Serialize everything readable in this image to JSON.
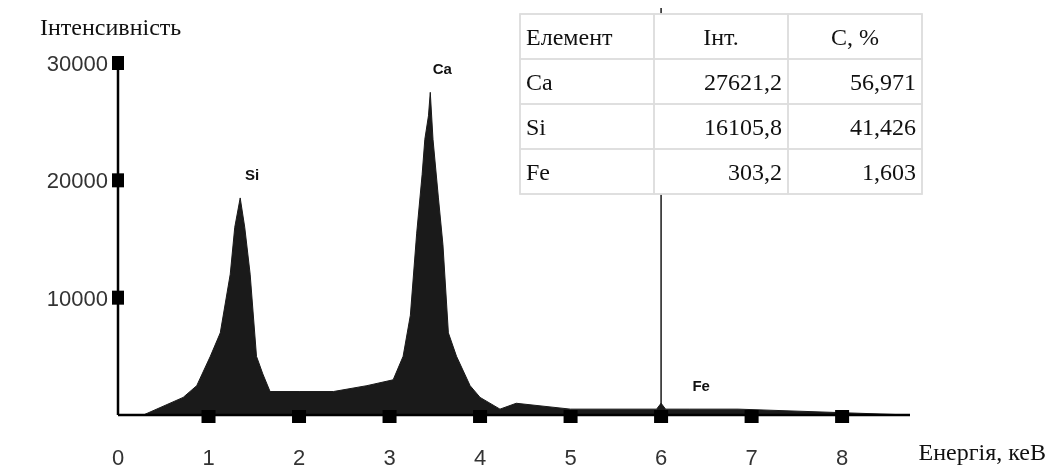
{
  "chart_data": [
    {
      "type": "area",
      "xlabel": "Енергія, кеВ",
      "ylabel": "Інтенсивність",
      "color": "#1a1a1a",
      "x": [
        0,
        0.28,
        0.72,
        0.87,
        1.02,
        1.13,
        1.24,
        1.29,
        1.35,
        1.4,
        1.46,
        1.53,
        1.6,
        1.68,
        2.01,
        2.38,
        2.75,
        3.04,
        3.15,
        3.23,
        3.3,
        3.36,
        3.39,
        3.43,
        3.45,
        3.48,
        3.54,
        3.59,
        3.65,
        3.74,
        3.89,
        4.0,
        4.22,
        4.4,
        5.0,
        5.95,
        6.0,
        6.05,
        6.31,
        6.85,
        8.75
      ],
      "values": [
        0,
        0,
        1500,
        2500,
        5000,
        7000,
        12000,
        16000,
        18500,
        16000,
        12000,
        5000,
        3500,
        2000,
        2000,
        2000,
        2500,
        3000,
        5000,
        8500,
        15500,
        20500,
        23500,
        25500,
        27500,
        23500,
        18500,
        14500,
        7000,
        5000,
        2500,
        1500,
        500,
        1000,
        500,
        500,
        1000,
        500,
        500,
        500,
        0
      ],
      "xlim": [
        0,
        8.75
      ],
      "xticks": [
        0,
        1,
        2,
        3,
        4,
        5,
        6,
        7,
        8
      ],
      "ylim": [
        0,
        30000
      ],
      "yticks": [
        10000,
        20000,
        30000
      ],
      "ref_lines": [
        {
          "axis": "x",
          "value": 6,
          "color": "#1a1a1a"
        }
      ],
      "annotations": [
        {
          "text": "Si",
          "x": 1.35,
          "y": 18500
        },
        {
          "text": "Ca",
          "x": 3.45,
          "y": 27500
        },
        {
          "text": "Fe",
          "x": 6.31,
          "y": 500
        }
      ]
    },
    {
      "type": "other",
      "categories": [
        "Елемент",
        "Інт.",
        "C, %"
      ],
      "annotations": [
        "Ca",
        "27621,2",
        "56,971",
        "Si",
        "16105,8",
        "41,426",
        "Fe",
        "303,2",
        "1,603"
      ]
    }
  ]
}
